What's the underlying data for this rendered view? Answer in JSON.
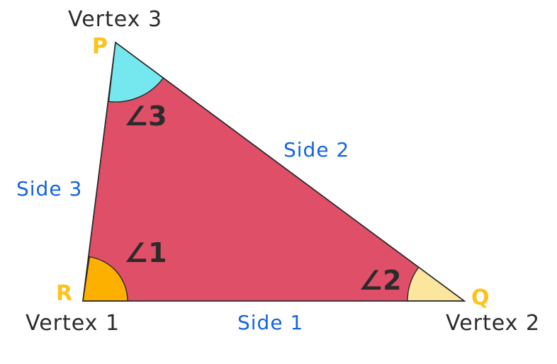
{
  "colors": {
    "triangle_fill": "#e04f68",
    "triangle_stroke": "#2a2a2a",
    "angle1_fill": "#fdb000",
    "angle2_fill": "#fce59c",
    "angle3_fill": "#74e8ee",
    "vertex_letter": "#fdc21b",
    "side_label": "#1565e0",
    "caption": "#2b2b2b"
  },
  "vertices": {
    "r": {
      "letter": "R",
      "caption": "Vertex 1"
    },
    "q": {
      "letter": "Q",
      "caption": "Vertex 2"
    },
    "p": {
      "letter": "P",
      "caption": "Vertex 3"
    }
  },
  "sides": {
    "side1": "Side 1",
    "side2": "Side 2",
    "side3": "Side 3"
  },
  "angles": {
    "angle1": "∠1",
    "angle2": "∠2",
    "angle3": "∠3"
  }
}
